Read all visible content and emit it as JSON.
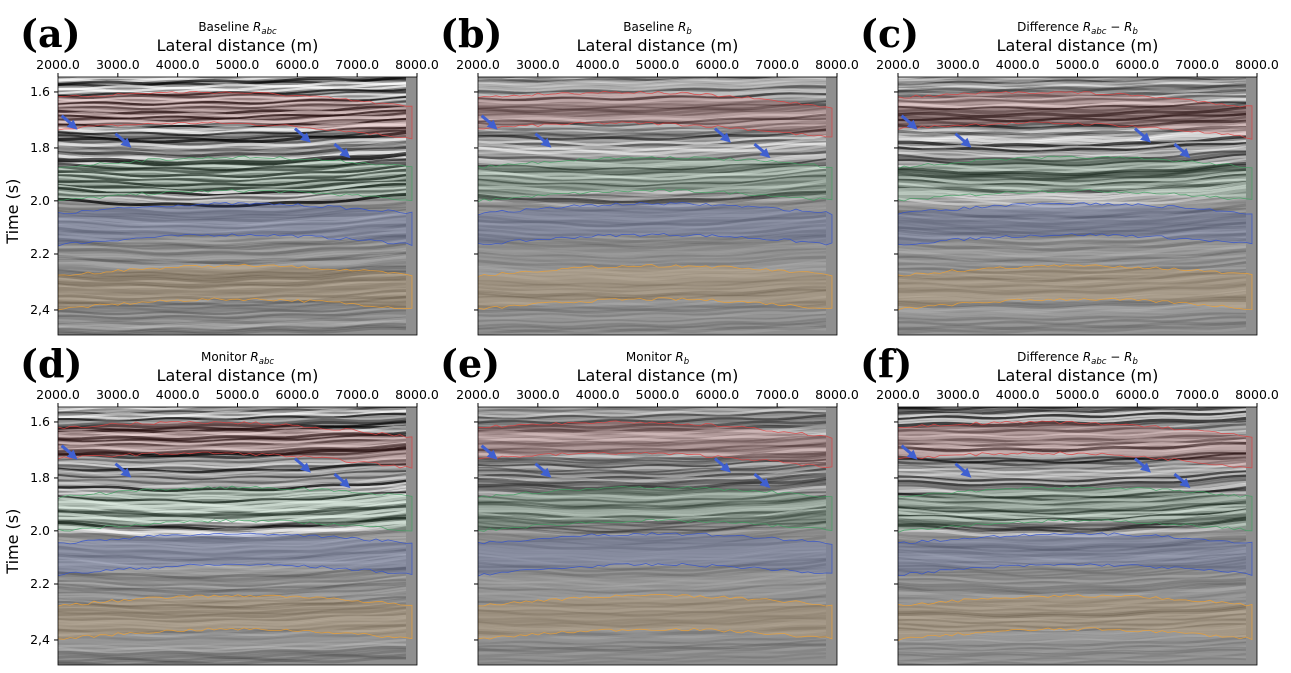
{
  "panels": [
    {
      "letter": "(a)",
      "title": [
        {
          "text": "Baseline "
        },
        {
          "text": "R",
          "style": "italic"
        },
        {
          "text": "abc",
          "style": "sub"
        }
      ],
      "xlabel": "Lateral distance (m)",
      "ylabel": "Time (s)"
    },
    {
      "letter": "(b)",
      "title": [
        {
          "text": "Baseline "
        },
        {
          "text": "R",
          "style": "italic"
        },
        {
          "text": "b",
          "style": "sub"
        }
      ],
      "xlabel": "Lateral distance (m)"
    },
    {
      "letter": "(c)",
      "title": [
        {
          "text": "Difference "
        },
        {
          "text": "R",
          "style": "italic"
        },
        {
          "text": "abc",
          "style": "sub"
        },
        {
          "text": " − "
        },
        {
          "text": "R",
          "style": "italic"
        },
        {
          "text": "b",
          "style": "sub"
        }
      ],
      "xlabel": "Lateral distance (m)"
    },
    {
      "letter": "(d)",
      "title": [
        {
          "text": "Monitor "
        },
        {
          "text": "R",
          "style": "italic"
        },
        {
          "text": "abc",
          "style": "sub"
        }
      ],
      "xlabel": "Lateral distance (m)",
      "ylabel": "Time (s)"
    },
    {
      "letter": "(e)",
      "title": [
        {
          "text": "Monitor "
        },
        {
          "text": "R",
          "style": "italic"
        },
        {
          "text": "b",
          "style": "sub"
        }
      ],
      "xlabel": "Lateral distance (m)"
    },
    {
      "letter": "(f)",
      "title": [
        {
          "text": "Difference "
        },
        {
          "text": "R",
          "style": "italic"
        },
        {
          "text": "abc",
          "style": "sub"
        },
        {
          "text": " − "
        },
        {
          "text": "R",
          "style": "italic"
        },
        {
          "text": "b",
          "style": "sub"
        }
      ],
      "xlabel": "Lateral distance (m)"
    }
  ],
  "xticks": [
    "2000.0",
    "3000.0",
    "4000.0",
    "5000.0",
    "6000.0",
    "7000.0",
    "8000.0"
  ],
  "yticks": [
    "1.6",
    "1.8",
    "2.0",
    "2.2",
    "2,4"
  ]
}
